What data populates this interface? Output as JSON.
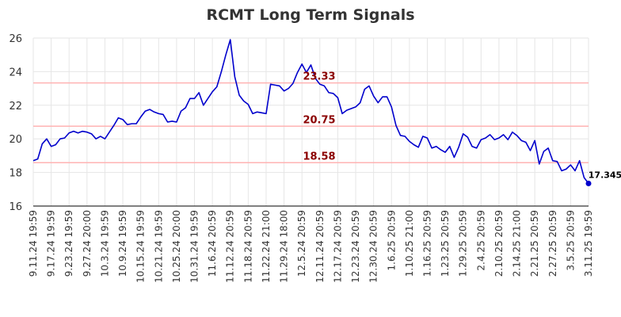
{
  "chart_data": {
    "type": "line",
    "title": "RCMT Long Term Signals",
    "xlabel": "",
    "ylabel": "",
    "ylim": [
      16,
      26
    ],
    "yticks": [
      16,
      18,
      20,
      22,
      24,
      26
    ],
    "grid": true,
    "legend": "none",
    "line_color": "#0000cc",
    "reference_line_color": "#ffb3b3",
    "reference_label_color": "#8b0000",
    "reference_lines": [
      {
        "value": 23.33,
        "label": "23.33"
      },
      {
        "value": 20.75,
        "label": "20.75"
      },
      {
        "value": 18.58,
        "label": "18.58"
      }
    ],
    "last_value": {
      "value": 17.345,
      "label": "17.345"
    },
    "x_tick_labels": [
      "9.11.24 19:59",
      "9.17.24 19:59",
      "9.23.24 19:59",
      "9.27.24 20:00",
      "10.3.24 19:59",
      "10.9.24 19:59",
      "10.15.24 19:59",
      "10.21.24 19:59",
      "10.25.24 20:00",
      "10.31.24 19:59",
      "11.6.24 20:59",
      "11.12.24 20:59",
      "11.18.24 20:59",
      "11.22.24 21:00",
      "11.29.24 18:00",
      "12.5.24 20:59",
      "12.11.24 20:59",
      "12.17.24 20:59",
      "12.23.24 20:59",
      "12.30.24 20:59",
      "1.6.25 20:59",
      "1.10.25 21:00",
      "1.16.25 20:59",
      "1.23.25 20:59",
      "1.29.25 20:59",
      "2.4.25 20:59",
      "2.10.25 20:59",
      "2.14.25 21:00",
      "2.21.25 20:59",
      "2.27.25 20:59",
      "3.5.25 20:59",
      "3.11.25 19:59"
    ],
    "values": [
      18.7,
      18.8,
      19.7,
      20.0,
      19.55,
      19.65,
      20.0,
      20.05,
      20.35,
      20.45,
      20.35,
      20.45,
      20.4,
      20.3,
      20.0,
      20.15,
      20.0,
      20.4,
      20.8,
      21.25,
      21.15,
      20.85,
      20.9,
      20.9,
      21.3,
      21.65,
      21.75,
      21.6,
      21.5,
      21.45,
      21.0,
      21.05,
      21.0,
      21.65,
      21.85,
      22.4,
      22.4,
      22.75,
      22.0,
      22.4,
      22.8,
      23.1,
      24.0,
      25.0,
      25.9,
      23.7,
      22.6,
      22.25,
      22.05,
      21.5,
      21.6,
      21.55,
      21.5,
      23.25,
      23.2,
      23.15,
      22.85,
      23.0,
      23.3,
      23.95,
      24.45,
      23.95,
      24.4,
      23.6,
      23.25,
      23.15,
      22.75,
      22.7,
      22.45,
      21.5,
      21.7,
      21.8,
      21.9,
      22.15,
      22.95,
      23.15,
      22.55,
      22.15,
      22.5,
      22.5,
      21.9,
      20.8,
      20.2,
      20.15,
      19.85,
      19.65,
      19.5,
      20.15,
      20.05,
      19.45,
      19.55,
      19.35,
      19.2,
      19.55,
      18.9,
      19.5,
      20.3,
      20.1,
      19.55,
      19.45,
      19.95,
      20.05,
      20.25,
      19.95,
      20.05,
      20.25,
      19.95,
      20.4,
      20.2,
      19.9,
      19.8,
      19.3,
      19.9,
      18.5,
      19.25,
      19.45,
      18.7,
      18.65,
      18.1,
      18.2,
      18.45,
      18.1,
      18.7,
      17.7,
      17.345
    ]
  }
}
